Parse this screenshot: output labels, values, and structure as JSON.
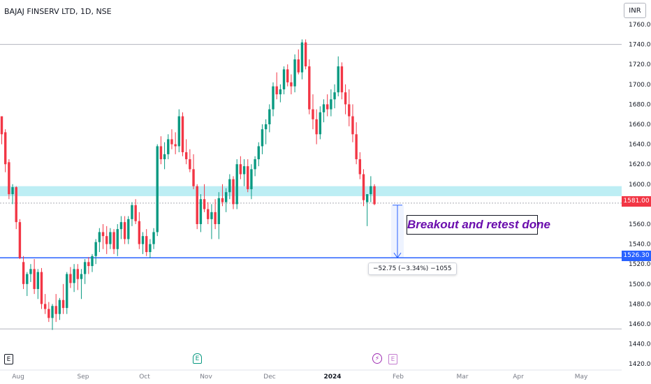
{
  "symbol": {
    "title": "BAJAJ FINSERV LTD, 1D, NSE"
  },
  "currency": "INR",
  "annotation": {
    "text": "Breakout and retest done"
  },
  "measure": {
    "label": "−52.75 (−3.34%) −1055"
  },
  "price_tags": {
    "current": "1581.00",
    "target": "1526.30"
  },
  "events": {
    "e1": "E",
    "e2": "E",
    "split": "⚡",
    "e3": "E"
  },
  "colors": {
    "up": "#089981",
    "down": "#f23645",
    "zone": "#b2ebf2",
    "line": "#2962ff",
    "measure": "#2962ff"
  },
  "chart_data": {
    "type": "candlestick",
    "title": "BAJAJ FINSERV LTD, 1D, NSE",
    "ylim": [
      1415,
      1765
    ],
    "y_ticks": [
      1760,
      1740,
      1720,
      1700,
      1680,
      1660,
      1640,
      1620,
      1600,
      1580,
      1560,
      1540,
      1520,
      1500,
      1480,
      1460,
      1440,
      1420
    ],
    "x_labels": [
      "Aug",
      "Sep",
      "Oct",
      "Nov",
      "Dec",
      "2024",
      "Feb",
      "Mar",
      "Apr",
      "May"
    ],
    "support_zone": [
      1588,
      1598
    ],
    "horizontal_line": 1526.3,
    "top_line": 1740,
    "bottom_line": 1455,
    "current_line": 1581,
    "measure": {
      "from": 1579,
      "to": 1526.3,
      "change": -52.75,
      "percent": -3.34,
      "bars": -1055
    },
    "candles": [
      [
        1668,
        1668,
        1640,
        1650
      ],
      [
        1652,
        1655,
        1612,
        1620
      ],
      [
        1622,
        1625,
        1585,
        1590
      ],
      [
        1590,
        1600,
        1580,
        1597
      ],
      [
        1597,
        1598,
        1555,
        1562
      ],
      [
        1562,
        1565,
        1525,
        1526
      ],
      [
        1522,
        1528,
        1495,
        1500
      ],
      [
        1500,
        1512,
        1488,
        1510
      ],
      [
        1510,
        1520,
        1502,
        1515
      ],
      [
        1515,
        1525,
        1490,
        1495
      ],
      [
        1495,
        1515,
        1485,
        1512
      ],
      [
        1512,
        1516,
        1475,
        1480
      ],
      [
        1480,
        1490,
        1470,
        1475
      ],
      [
        1475,
        1482,
        1462,
        1466
      ],
      [
        1466,
        1480,
        1454,
        1478
      ],
      [
        1478,
        1490,
        1462,
        1470
      ],
      [
        1470,
        1486,
        1464,
        1484
      ],
      [
        1484,
        1500,
        1470,
        1476
      ],
      [
        1476,
        1512,
        1470,
        1510
      ],
      [
        1510,
        1517,
        1496,
        1501
      ],
      [
        1501,
        1520,
        1492,
        1515
      ],
      [
        1515,
        1520,
        1494,
        1505
      ],
      [
        1505,
        1515,
        1485,
        1510
      ],
      [
        1510,
        1525,
        1500,
        1522
      ],
      [
        1522,
        1527,
        1510,
        1518
      ],
      [
        1518,
        1530,
        1512,
        1528
      ],
      [
        1528,
        1545,
        1520,
        1542
      ],
      [
        1542,
        1556,
        1532,
        1552
      ],
      [
        1552,
        1560,
        1535,
        1548
      ],
      [
        1548,
        1558,
        1530,
        1540
      ],
      [
        1540,
        1556,
        1535,
        1552
      ],
      [
        1552,
        1555,
        1530,
        1535
      ],
      [
        1535,
        1560,
        1528,
        1555
      ],
      [
        1555,
        1568,
        1545,
        1562
      ],
      [
        1562,
        1568,
        1540,
        1545
      ],
      [
        1545,
        1568,
        1540,
        1565
      ],
      [
        1565,
        1582,
        1558,
        1579
      ],
      [
        1579,
        1585,
        1560,
        1563
      ],
      [
        1563,
        1572,
        1535,
        1540
      ],
      [
        1540,
        1552,
        1530,
        1548
      ],
      [
        1548,
        1555,
        1528,
        1532
      ],
      [
        1532,
        1545,
        1526,
        1540
      ],
      [
        1540,
        1556,
        1535,
        1552
      ],
      [
        1552,
        1640,
        1548,
        1638
      ],
      [
        1638,
        1648,
        1620,
        1625
      ],
      [
        1625,
        1642,
        1615,
        1630
      ],
      [
        1630,
        1650,
        1625,
        1645
      ],
      [
        1645,
        1655,
        1635,
        1640
      ],
      [
        1640,
        1652,
        1630,
        1638
      ],
      [
        1638,
        1675,
        1632,
        1668
      ],
      [
        1668,
        1672,
        1628,
        1632
      ],
      [
        1632,
        1645,
        1620,
        1625
      ],
      [
        1625,
        1635,
        1612,
        1615
      ],
      [
        1615,
        1630,
        1595,
        1598
      ],
      [
        1598,
        1600,
        1555,
        1560
      ],
      [
        1560,
        1590,
        1552,
        1585
      ],
      [
        1585,
        1600,
        1572,
        1575
      ],
      [
        1575,
        1582,
        1560,
        1565
      ],
      [
        1565,
        1580,
        1545,
        1572
      ],
      [
        1572,
        1585,
        1555,
        1560
      ],
      [
        1560,
        1592,
        1545,
        1586
      ],
      [
        1586,
        1600,
        1578,
        1582
      ],
      [
        1582,
        1596,
        1572,
        1592
      ],
      [
        1592,
        1610,
        1585,
        1605
      ],
      [
        1605,
        1608,
        1575,
        1580
      ],
      [
        1580,
        1625,
        1575,
        1620
      ],
      [
        1620,
        1628,
        1605,
        1610
      ],
      [
        1610,
        1625,
        1598,
        1618
      ],
      [
        1618,
        1625,
        1592,
        1595
      ],
      [
        1595,
        1620,
        1585,
        1615
      ],
      [
        1615,
        1628,
        1608,
        1625
      ],
      [
        1625,
        1642,
        1618,
        1638
      ],
      [
        1638,
        1660,
        1630,
        1655
      ],
      [
        1655,
        1665,
        1640,
        1660
      ],
      [
        1660,
        1680,
        1652,
        1675
      ],
      [
        1675,
        1702,
        1668,
        1698
      ],
      [
        1698,
        1712,
        1685,
        1690
      ],
      [
        1690,
        1700,
        1682,
        1695
      ],
      [
        1695,
        1718,
        1690,
        1715
      ],
      [
        1715,
        1720,
        1698,
        1702
      ],
      [
        1702,
        1710,
        1690,
        1698
      ],
      [
        1698,
        1730,
        1692,
        1725
      ],
      [
        1725,
        1735,
        1710,
        1712
      ],
      [
        1712,
        1745,
        1705,
        1742
      ],
      [
        1742,
        1745,
        1715,
        1718
      ],
      [
        1718,
        1725,
        1670,
        1675
      ],
      [
        1675,
        1690,
        1655,
        1665
      ],
      [
        1665,
        1675,
        1640,
        1650
      ],
      [
        1650,
        1678,
        1645,
        1672
      ],
      [
        1672,
        1685,
        1662,
        1680
      ],
      [
        1680,
        1690,
        1668,
        1675
      ],
      [
        1675,
        1695,
        1668,
        1685
      ],
      [
        1685,
        1700,
        1676,
        1692
      ],
      [
        1692,
        1728,
        1688,
        1718
      ],
      [
        1718,
        1722,
        1685,
        1692
      ],
      [
        1692,
        1700,
        1670,
        1680
      ],
      [
        1680,
        1695,
        1658,
        1668
      ],
      [
        1668,
        1680,
        1642,
        1650
      ],
      [
        1650,
        1662,
        1620,
        1625
      ],
      [
        1625,
        1632,
        1605,
        1610
      ],
      [
        1610,
        1615,
        1578,
        1584
      ],
      [
        1582,
        1590,
        1558,
        1590
      ],
      [
        1590,
        1608,
        1582,
        1598
      ],
      [
        1598,
        1600,
        1579,
        1580
      ]
    ]
  }
}
